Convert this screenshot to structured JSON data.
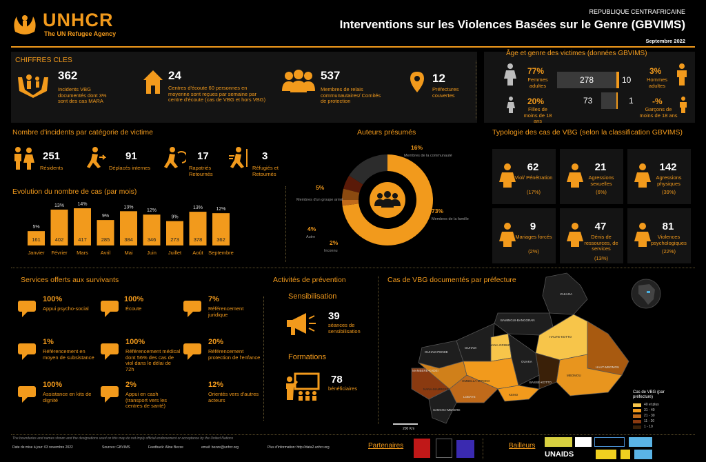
{
  "header": {
    "logo_name": "UNHCR",
    "logo_sub": "The UN Refugee Agency",
    "country": "REPUBLIQUE CENTRAFRICAINE",
    "title": "Interventions sur les Violences Basées sur le Genre (GBVIMS)",
    "date": "Septembre 2022"
  },
  "chiffres": {
    "title": "CHIFFRES CLES",
    "items": [
      {
        "value": "362",
        "label": "Incidents VBG documentés dont 3% sont des cas MARA",
        "icon": "hands-family-icon"
      },
      {
        "value": "24",
        "label": "Centres d'écoute 60 personnes en moyenne sont reçues par semaine par centre d'écoute (cas de VBG et hors VBG)",
        "icon": "house-icon"
      },
      {
        "value": "537",
        "label": "Membres de relais communautaires/ Comités de protection",
        "icon": "group-icon"
      },
      {
        "value": "12",
        "label": "Préfectures couvertes",
        "icon": "location-pin-icon"
      }
    ]
  },
  "age_gender": {
    "title": "Âge et genre des victimes (données GBVIMS)",
    "rows": [
      {
        "f_pct": "77%",
        "f_label": "Femmes adultes",
        "f_count": "278",
        "m_count": "10",
        "m_pct": "3%",
        "m_label": "Hommes adultes"
      },
      {
        "f_pct": "20%",
        "f_label": "Filles de moins de 18 ans",
        "f_count": "73",
        "m_count": "1",
        "m_pct": "-%",
        "m_label": "Garçons de moins de 18 ans"
      }
    ]
  },
  "categories": {
    "title": "Nombre d'incidents par catégorie de victime",
    "items": [
      {
        "value": "251",
        "label": "Résidents"
      },
      {
        "value": "91",
        "label": "Déplacés internes"
      },
      {
        "value": "17",
        "label": "Rapatriés Retournés"
      },
      {
        "value": "3",
        "label": "Réfugiés et Retournés"
      }
    ]
  },
  "monthly_title": "Evolution du nombre de cas (par mois)",
  "authors_title": "Auteurs présumés",
  "typology_title": "Typologie des cas de VBG (selon la classification GBVIMS)",
  "chart_data": [
    {
      "type": "bar",
      "title": "Evolution du nombre de cas (par mois)",
      "categories": [
        "Janvier",
        "Février",
        "Mars",
        "Avril",
        "Mai",
        "Juin",
        "Juillet",
        "Août",
        "Septembre"
      ],
      "values": [
        161,
        402,
        417,
        285,
        384,
        346,
        273,
        378,
        362
      ],
      "labels_pct": [
        "5%",
        "13%",
        "14%",
        "9%",
        "13%",
        "12%",
        "9%",
        "13%",
        "12%"
      ],
      "ylim": [
        0,
        450
      ],
      "color": "#f29a1c"
    },
    {
      "type": "pie",
      "title": "Auteurs présumés",
      "slices": [
        {
          "label": "Membres de la famille",
          "pct": "73%",
          "value": 73,
          "color": "#f29a1c"
        },
        {
          "label": "Autre",
          "pct": "4%",
          "value": 4,
          "color": "#8a4a10"
        },
        {
          "label": "Membres d'un groupe armé",
          "pct": "5%",
          "value": 5,
          "color": "#5a1a08"
        },
        {
          "label": "Membres de la communauté",
          "pct": "16%",
          "value": 16,
          "color": "#2c2c2c"
        },
        {
          "label": "Inconnu",
          "pct": "2%",
          "value": 2,
          "color": "#c06a1a"
        }
      ]
    },
    {
      "type": "table",
      "title": "Typologie des cas de VBG (selon la classification GBVIMS)",
      "items": [
        {
          "value": "62",
          "label": "Viol/ Pénétration",
          "pct": "(17%)"
        },
        {
          "value": "21",
          "label": "Agressions sexuelles",
          "pct": "(6%)"
        },
        {
          "value": "142",
          "label": "Agressions physiques",
          "pct": "(39%)"
        },
        {
          "value": "9",
          "label": "Mariages forcés",
          "pct": "(2%)"
        },
        {
          "value": "47",
          "label": "Dénis de ressources, de services",
          "pct": "(13%)"
        },
        {
          "value": "81",
          "label": "Violences psychologiques",
          "pct": "(22%)"
        }
      ]
    }
  ],
  "services": {
    "title": "Services offerts aux survivants",
    "items": [
      {
        "value": "100%",
        "label": "Appui psycho-social"
      },
      {
        "value": "100%",
        "label": "Écoute"
      },
      {
        "value": "7%",
        "label": "Référencement juridique"
      },
      {
        "value": "1%",
        "label": "Référencement en moyen de subsistance"
      },
      {
        "value": "100%",
        "label": "Référencement médical dont 56% des cas de viol dans le délai de 72h"
      },
      {
        "value": "20%",
        "label": "Référencement protection de l'enfance"
      },
      {
        "value": "100%",
        "label": "Assistance en kits de dignité"
      },
      {
        "value": "2%",
        "label": "Appui en cash (transport vers les centres de santé)"
      },
      {
        "value": "12%",
        "label": "Orientés vers d'autres acteurs"
      }
    ]
  },
  "prevention": {
    "title": "Activités de prévention",
    "sensib_title": "Sensibilisation",
    "sensib_value": "39",
    "sensib_label": "séances de sensibilisation",
    "form_title": "Formations",
    "form_value": "78",
    "form_label": "bénéficiaires"
  },
  "map": {
    "title": "Cas de VBG documentés par préfecture",
    "legend_title": "Cas de VBG (par préfecture)",
    "legend": [
      "40 et plus",
      "31 - 40",
      "21 - 30",
      "11 - 20",
      "1 - 10"
    ],
    "scale": "200 Km",
    "prefectures": [
      "VAKAGA",
      "BAMINGUI-BANGORAN",
      "HAUTE-KOTTO",
      "OUHAM-PENDE",
      "OUHAM",
      "NANA-GRIBIZI",
      "OUAKA",
      "HAUT-MBOMOU",
      "MBOMOU",
      "MAMBERE-KADEI",
      "NANA-MAMBERE",
      "OMBELLA-M'POKO",
      "LOBAYE",
      "BASSE-KOTTO",
      "KEMO",
      "SANGHA-MBAERE"
    ]
  },
  "footer": {
    "disclaimer": "The boundaries and names shown and the designations used on this map do not imply official endorsement or acceptance by the United Nations",
    "updated": "Date de mise à jour: 03 novembre 2022",
    "sources": "Sources: GBVIMS",
    "feedback": "Feedback: Aline Bezze",
    "email": "email: bezze@unhcr.org",
    "more": "Plus d'information: http://data2.unhcr.org",
    "partners": "Partenaires",
    "donors": "Bailleurs",
    "donor_logo": "UNAIDS"
  }
}
